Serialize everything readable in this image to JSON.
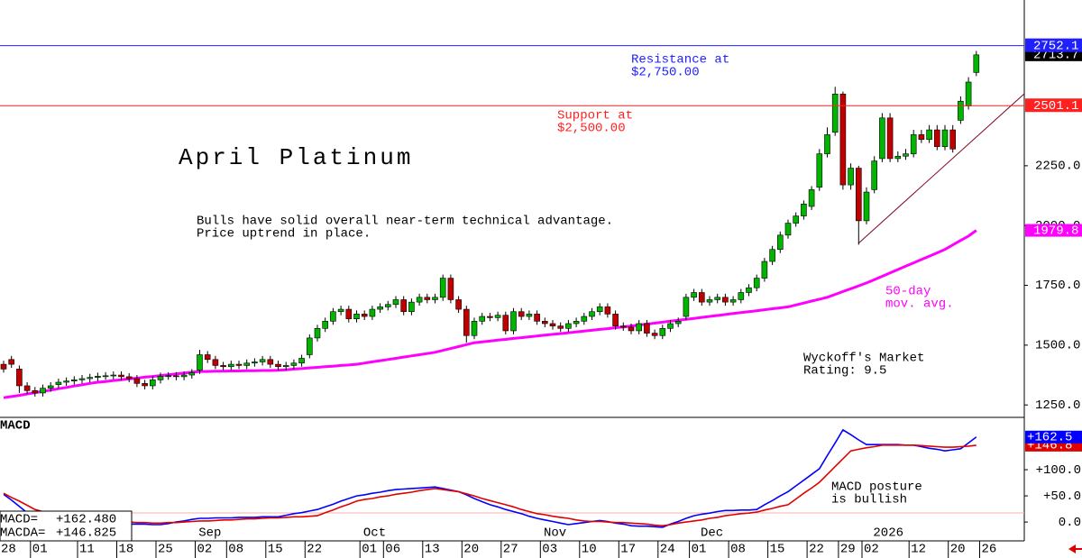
{
  "chart_data": [
    {
      "type": "candlestick",
      "title": "April Platinum",
      "subtitle": [
        "Bulls have solid overall near-term technical advantage.",
        "Price uptrend in place."
      ],
      "categories": [
        "28",
        null,
        null,
        null,
        "01",
        null,
        null,
        null,
        null,
        null,
        "11",
        null,
        null,
        null,
        null,
        "18",
        null,
        null,
        null,
        null,
        "25",
        null,
        null,
        null,
        null,
        "02",
        null,
        null,
        null,
        "08",
        null,
        null,
        null,
        null,
        "15",
        null,
        null,
        null,
        null,
        "22",
        null,
        null,
        null,
        null,
        null,
        null,
        "01",
        null,
        null,
        "06",
        null,
        null,
        null,
        null,
        "13",
        null,
        null,
        null,
        null,
        "20",
        null,
        null,
        null,
        null,
        "27",
        null,
        null,
        null,
        null,
        "03",
        null,
        null,
        null,
        null,
        "10",
        null,
        null,
        null,
        null,
        "17",
        null,
        null,
        null,
        null,
        "24",
        null,
        null,
        null,
        "01",
        null,
        null,
        null,
        null,
        "08",
        null,
        null,
        null,
        null,
        "15",
        null,
        null,
        null,
        null,
        "22",
        null,
        null,
        null,
        "29",
        null,
        null,
        "02",
        null,
        null,
        null,
        null,
        null,
        "12",
        null,
        null,
        null,
        null,
        "20",
        null,
        null,
        null,
        "26"
      ],
      "months": [
        {
          "label": "Sep",
          "index": 26
        },
        {
          "label": "Oct",
          "index": 47
        },
        {
          "label": "Nov",
          "index": 70
        },
        {
          "label": "Dec",
          "index": 90
        },
        {
          "label": "2026",
          "index": 112
        }
      ],
      "open": [
        1420,
        1440,
        1400,
        1330,
        1310,
        1300,
        1320,
        1335,
        1345,
        1350,
        1355,
        1360,
        1365,
        1370,
        1372,
        1375,
        1368,
        1360,
        1340,
        1330,
        1355,
        1370,
        1372,
        1368,
        1375,
        1395,
        1460,
        1440,
        1415,
        1410,
        1420,
        1415,
        1425,
        1430,
        1440,
        1420,
        1410,
        1415,
        1425,
        1460,
        1530,
        1570,
        1600,
        1640,
        1650,
        1610,
        1630,
        1620,
        1650,
        1660,
        1670,
        1690,
        1640,
        1680,
        1700,
        1690,
        1700,
        1780,
        1690,
        1650,
        1540,
        1600,
        1620,
        1615,
        1625,
        1560,
        1640,
        1620,
        1630,
        1600,
        1590,
        1580,
        1570,
        1590,
        1600,
        1620,
        1640,
        1660,
        1630,
        1580,
        1575,
        1560,
        1590,
        1550,
        1540,
        1570,
        1590,
        1620,
        1700,
        1720,
        1680,
        1690,
        1700,
        1680,
        1690,
        1720,
        1740,
        1780,
        1850,
        1900,
        1960,
        2010,
        2040,
        2080,
        2160,
        2300,
        2390,
        2550,
        2170,
        2240,
        2020,
        2150,
        2280,
        2450,
        2280,
        2290,
        2300,
        2380,
        2360,
        2400,
        2330,
        2400,
        2440,
        2500,
        2640,
        null
      ],
      "high": [
        1435,
        1455,
        1415,
        1345,
        1325,
        1335,
        1345,
        1360,
        1365,
        1370,
        1375,
        1380,
        1385,
        1387,
        1390,
        1390,
        1383,
        1375,
        1355,
        1370,
        1385,
        1387,
        1387,
        1390,
        1400,
        1480,
        1475,
        1455,
        1430,
        1435,
        1435,
        1440,
        1445,
        1455,
        1455,
        1435,
        1430,
        1440,
        1460,
        1545,
        1585,
        1615,
        1655,
        1665,
        1665,
        1645,
        1645,
        1665,
        1675,
        1685,
        1705,
        1705,
        1695,
        1715,
        1715,
        1715,
        1795,
        1795,
        1705,
        1665,
        1615,
        1635,
        1635,
        1640,
        1640,
        1655,
        1655,
        1645,
        1645,
        1615,
        1605,
        1595,
        1605,
        1615,
        1635,
        1655,
        1675,
        1675,
        1645,
        1595,
        1590,
        1605,
        1605,
        1565,
        1585,
        1605,
        1615,
        1715,
        1735,
        1735,
        1705,
        1715,
        1715,
        1705,
        1735,
        1755,
        1795,
        1865,
        1915,
        1975,
        2025,
        2055,
        2105,
        2165,
        2320,
        2410,
        2580,
        2560,
        2260,
        2250,
        2160,
        2290,
        2470,
        2470,
        2310,
        2320,
        2400,
        2400,
        2420,
        2420,
        2420,
        2420,
        2540,
        2620,
        2730,
        null
      ],
      "low": [
        1385,
        1405,
        1300,
        1295,
        1285,
        1285,
        1305,
        1320,
        1330,
        1335,
        1340,
        1345,
        1350,
        1355,
        1357,
        1353,
        1345,
        1325,
        1315,
        1315,
        1340,
        1355,
        1353,
        1353,
        1360,
        1380,
        1425,
        1400,
        1395,
        1395,
        1400,
        1400,
        1410,
        1415,
        1405,
        1395,
        1395,
        1400,
        1410,
        1445,
        1515,
        1555,
        1585,
        1625,
        1595,
        1595,
        1605,
        1605,
        1635,
        1645,
        1655,
        1625,
        1625,
        1665,
        1675,
        1675,
        1685,
        1675,
        1635,
        1510,
        1525,
        1585,
        1600,
        1600,
        1545,
        1545,
        1605,
        1605,
        1585,
        1575,
        1565,
        1555,
        1555,
        1575,
        1585,
        1605,
        1625,
        1615,
        1565,
        1560,
        1545,
        1545,
        1535,
        1525,
        1525,
        1555,
        1575,
        1605,
        1685,
        1665,
        1665,
        1675,
        1665,
        1665,
        1675,
        1705,
        1725,
        1765,
        1835,
        1885,
        1945,
        1995,
        2025,
        2065,
        2145,
        2285,
        2375,
        2150,
        2150,
        1920,
        2005,
        2135,
        2265,
        2265,
        2265,
        2275,
        2285,
        2345,
        2345,
        2315,
        2315,
        2305,
        2425,
        2485,
        2625,
        null
      ],
      "close": [
        1400,
        1420,
        1330,
        1310,
        1300,
        1320,
        1330,
        1345,
        1350,
        1355,
        1360,
        1365,
        1370,
        1372,
        1375,
        1368,
        1360,
        1340,
        1330,
        1355,
        1370,
        1372,
        1368,
        1375,
        1385,
        1460,
        1440,
        1415,
        1410,
        1420,
        1415,
        1425,
        1430,
        1440,
        1420,
        1410,
        1415,
        1425,
        1445,
        1530,
        1570,
        1600,
        1640,
        1650,
        1610,
        1630,
        1620,
        1650,
        1660,
        1670,
        1690,
        1640,
        1680,
        1700,
        1690,
        1700,
        1780,
        1690,
        1650,
        1540,
        1600,
        1620,
        1615,
        1625,
        1560,
        1640,
        1620,
        1630,
        1600,
        1590,
        1580,
        1570,
        1590,
        1600,
        1620,
        1640,
        1660,
        1630,
        1580,
        1575,
        1560,
        1590,
        1550,
        1540,
        1570,
        1590,
        1600,
        1700,
        1720,
        1680,
        1690,
        1700,
        1680,
        1690,
        1720,
        1740,
        1780,
        1850,
        1900,
        1960,
        2010,
        2040,
        2090,
        2150,
        2300,
        2380,
        2550,
        2170,
        2240,
        2020,
        2140,
        2270,
        2450,
        2280,
        2290,
        2300,
        2380,
        2360,
        2400,
        2330,
        2400,
        2320,
        2520,
        2600,
        2713.7,
        null
      ],
      "up_color": "#00b400",
      "down_color": "#c00000",
      "ylim": [
        1198,
        2943
      ],
      "yticks": [
        {
          "value": 1250,
          "label": "1250.0"
        },
        {
          "value": 1500,
          "label": "1500.0"
        },
        {
          "value": 1750,
          "label": "1750.0"
        },
        {
          "value": 2000,
          "label": "2000.0"
        },
        {
          "value": 2250,
          "label": "2250.0"
        }
      ],
      "hlines": [
        {
          "value": 2752.1,
          "color": "#2020ff",
          "text": [
            "Resistance at",
            "$2,750.00"
          ]
        },
        {
          "value": 2501.1,
          "color": "#ff2020",
          "text": [
            "Support at",
            "$2,500.00"
          ]
        }
      ],
      "series": [
        {
          "type": "line",
          "label": [
            "50-day",
            "mov. avg."
          ],
          "color": "#ff00ff",
          "values": [
            1280,
            1285,
            1290,
            1296,
            1301,
            1307,
            1312,
            1318,
            1323,
            1329,
            1334,
            1340,
            1345,
            1348,
            1352,
            1355,
            1359,
            1362,
            1366,
            1369,
            1373,
            1376,
            1380,
            1383,
            1387,
            1390,
            1390,
            1391,
            1391,
            1392,
            1392,
            1393,
            1393,
            1394,
            1394,
            1395,
            1397,
            1400,
            1402,
            1405,
            1407,
            1410,
            1412,
            1415,
            1417,
            1420,
            1425,
            1430,
            1435,
            1440,
            1445,
            1450,
            1455,
            1460,
            1465,
            1470,
            1478,
            1486,
            1494,
            1502,
            1510,
            1514,
            1517,
            1521,
            1524,
            1528,
            1531,
            1535,
            1538,
            1542,
            1545,
            1548,
            1552,
            1555,
            1559,
            1562,
            1566,
            1569,
            1573,
            1576,
            1580,
            1584,
            1588,
            1592,
            1596,
            1600,
            1604,
            1608,
            1612,
            1616,
            1620,
            1624,
            1628,
            1632,
            1636,
            1640,
            1644,
            1648,
            1652,
            1656,
            1660,
            1668,
            1676,
            1684,
            1692,
            1700,
            1712,
            1724,
            1736,
            1748,
            1760,
            1774,
            1788,
            1802,
            1816,
            1830,
            1844,
            1858,
            1872,
            1886,
            1900,
            1919,
            1938,
            1956,
            1979.8,
            null
          ]
        }
      ],
      "annotations": [
        [
          "Wyckoff's Market",
          "Rating: 9.5"
        ]
      ]
    },
    {
      "type": "line",
      "title": "MACD",
      "ylim": [
        -36,
        200
      ],
      "yticks": [
        {
          "value": 0,
          "label": "0.0"
        },
        {
          "value": 50,
          "label": "+50.0"
        },
        {
          "value": 100,
          "label": "+100.0"
        }
      ],
      "series": [
        {
          "readout_label": "MACD=",
          "readout_value": "+162.480",
          "last_value_label": "+162.5",
          "color": "#0000ff",
          "values": [
            53,
            42,
            30,
            18,
            7,
            5,
            3,
            2,
            0,
            -1,
            -2,
            -2,
            -2,
            -3,
            -3,
            -3,
            -4,
            -4,
            -4,
            -5,
            -5,
            -3,
            0,
            2,
            5,
            7,
            7,
            8,
            8,
            8,
            9,
            9,
            9,
            10,
            10,
            10,
            13,
            16,
            18,
            21,
            24,
            29,
            34,
            40,
            45,
            50,
            52,
            55,
            57,
            60,
            62,
            63,
            64,
            65,
            66,
            67,
            64,
            61,
            58,
            52,
            45,
            39,
            33,
            29,
            24,
            20,
            16,
            11,
            7,
            4,
            1,
            -2,
            -5,
            -3,
            -1,
            1,
            3,
            1,
            -2,
            -4,
            -7,
            -8,
            -8,
            -9,
            -10,
            -4,
            1,
            7,
            12,
            15,
            17,
            20,
            22,
            22,
            23,
            23,
            24,
            33,
            41,
            50,
            58,
            69,
            80,
            91,
            102,
            127,
            151,
            176,
            167,
            157,
            148,
            148,
            148,
            148,
            148,
            147,
            147,
            144,
            141,
            139,
            136,
            138,
            140,
            151,
            162.48,
            null
          ]
        },
        {
          "readout_label": "MACDA=",
          "readout_value": "+146.825",
          "last_value_label": "+146.8",
          "color": "#e00000",
          "values": [
            55,
            47,
            40,
            32,
            24,
            20,
            16,
            11,
            7,
            4,
            2,
            2,
            1,
            1,
            0,
            0,
            0,
            -1,
            -1,
            -2,
            -2,
            -1,
            -1,
            0,
            1,
            2,
            2,
            3,
            4,
            4,
            5,
            6,
            6,
            7,
            8,
            8,
            9,
            10,
            10,
            11,
            12,
            18,
            23,
            29,
            34,
            40,
            43,
            45,
            48,
            50,
            53,
            55,
            57,
            60,
            62,
            64,
            62,
            60,
            58,
            54,
            50,
            45,
            41,
            37,
            33,
            29,
            24,
            20,
            16,
            14,
            11,
            9,
            7,
            4,
            2,
            1,
            1,
            0,
            -1,
            -1,
            -2,
            -3,
            -4,
            -6,
            -7,
            -5,
            -2,
            0,
            2,
            4,
            7,
            9,
            12,
            14,
            16,
            17,
            19,
            23,
            26,
            30,
            33,
            44,
            55,
            65,
            76,
            91,
            106,
            121,
            136,
            139,
            142,
            144,
            147,
            147,
            147,
            147,
            147,
            146,
            145,
            144,
            143,
            143,
            144,
            145,
            146.825,
            null
          ]
        }
      ],
      "annotations": [
        [
          "MACD posture",
          "is bullish"
        ]
      ]
    }
  ]
}
